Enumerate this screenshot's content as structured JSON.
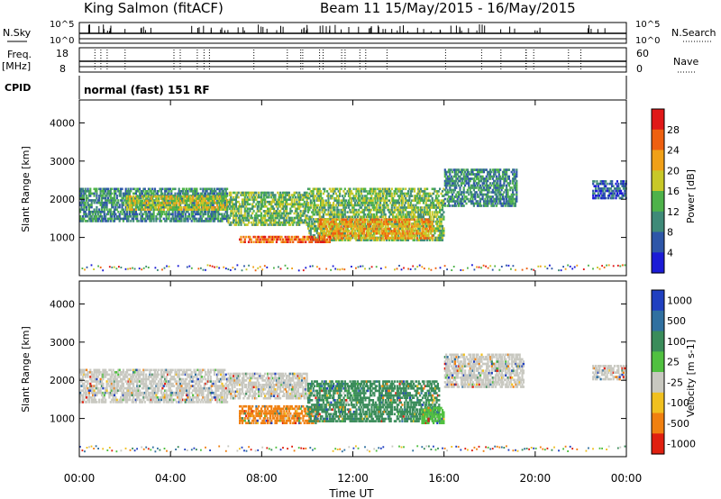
{
  "header": {
    "station": "King Salmon (fitACF)",
    "beam_date": "Beam 11  15/May/2015 - 16/May/2015"
  },
  "strip_labels": {
    "nsky": "N.Sky",
    "nsky_ticks": [
      "10^5",
      "10^0"
    ],
    "nsearch": "N.Search",
    "nsearch_ticks": [
      "10^5",
      "10^0"
    ],
    "freq_top": "Freq.",
    "freq_unit": "[MHz]",
    "freq_ticks": [
      "18",
      "8"
    ],
    "nave": "Nave",
    "nave_ticks": [
      "60",
      "0"
    ],
    "cpid": "CPID",
    "cpid_text": "normal (fast) 151 RF"
  },
  "chart_data": [
    {
      "type": "heatmap",
      "name": "power",
      "ylabel": "Slant Range [km]",
      "ylim": [
        0,
        4600
      ],
      "yticks": [
        "1000",
        "2000",
        "3000",
        "4000"
      ],
      "xlim_hours": [
        0,
        24
      ],
      "colorbar_label": "Power [dB]",
      "colorbar_ticks": [
        "4",
        "8",
        "12",
        "16",
        "20",
        "24",
        "28"
      ],
      "colors": [
        "#1b1bd6",
        "#2e56a8",
        "#3f8a78",
        "#4eb24a",
        "#c8c828",
        "#f0a018",
        "#ee6010",
        "#e01818"
      ],
      "echo_regions": [
        {
          "t0": 0.0,
          "t1": 6.5,
          "r0": 1400,
          "r1": 2300,
          "level": 2
        },
        {
          "t0": 2.0,
          "t1": 6.5,
          "r0": 1700,
          "r1": 2100,
          "level": 4
        },
        {
          "t0": 6.5,
          "t1": 10.0,
          "r0": 1300,
          "r1": 2200,
          "level": 3
        },
        {
          "t0": 10.0,
          "t1": 16.0,
          "r0": 900,
          "r1": 2300,
          "level": 3
        },
        {
          "t0": 10.5,
          "t1": 15.5,
          "r0": 950,
          "r1": 1500,
          "level": 5
        },
        {
          "t0": 16.0,
          "t1": 19.2,
          "r0": 1800,
          "r1": 2800,
          "level": 2
        },
        {
          "t0": 7.0,
          "t1": 11.0,
          "r0": 850,
          "r1": 1050,
          "level": 6
        },
        {
          "t0": 22.5,
          "t1": 24.0,
          "r0": 2000,
          "r1": 2500,
          "level": 1
        }
      ]
    },
    {
      "type": "heatmap",
      "name": "velocity",
      "ylabel": "Slant Range [km]",
      "ylim": [
        0,
        4600
      ],
      "yticks": [
        "1000",
        "2000",
        "3000",
        "4000"
      ],
      "xlim_hours": [
        0,
        24
      ],
      "xticks": [
        "00:00",
        "04:00",
        "08:00",
        "12:00",
        "16:00",
        "20:00",
        "00:00"
      ],
      "xlabel": "Time UT",
      "colorbar_label": "Velocity [m s-1]",
      "colorbar_ticks": [
        "1000",
        "500",
        "100",
        "25",
        "-25",
        "-100",
        "-500",
        "-1000"
      ],
      "colors": [
        "#2040c0",
        "#3070a0",
        "#3a8c5a",
        "#50c040",
        "#c8c8c0",
        "#f0c020",
        "#f08010",
        "#e02010"
      ],
      "echo_regions": [
        {
          "t0": 0.0,
          "t1": 6.5,
          "r0": 1400,
          "r1": 2300,
          "color_index": 4
        },
        {
          "t0": 6.5,
          "t1": 10.0,
          "r0": 1500,
          "r1": 2200,
          "color_index": 4
        },
        {
          "t0": 7.0,
          "t1": 10.5,
          "r0": 850,
          "r1": 1350,
          "color_index": 6
        },
        {
          "t0": 10.0,
          "t1": 15.8,
          "r0": 900,
          "r1": 2000,
          "color_index": 2
        },
        {
          "t0": 15.0,
          "t1": 16.0,
          "r0": 850,
          "r1": 1300,
          "color_index": 3
        },
        {
          "t0": 16.0,
          "t1": 19.5,
          "r0": 1800,
          "r1": 2700,
          "color_index": 4
        },
        {
          "t0": 22.5,
          "t1": 24.0,
          "r0": 2000,
          "r1": 2400,
          "color_index": 4
        }
      ]
    }
  ]
}
